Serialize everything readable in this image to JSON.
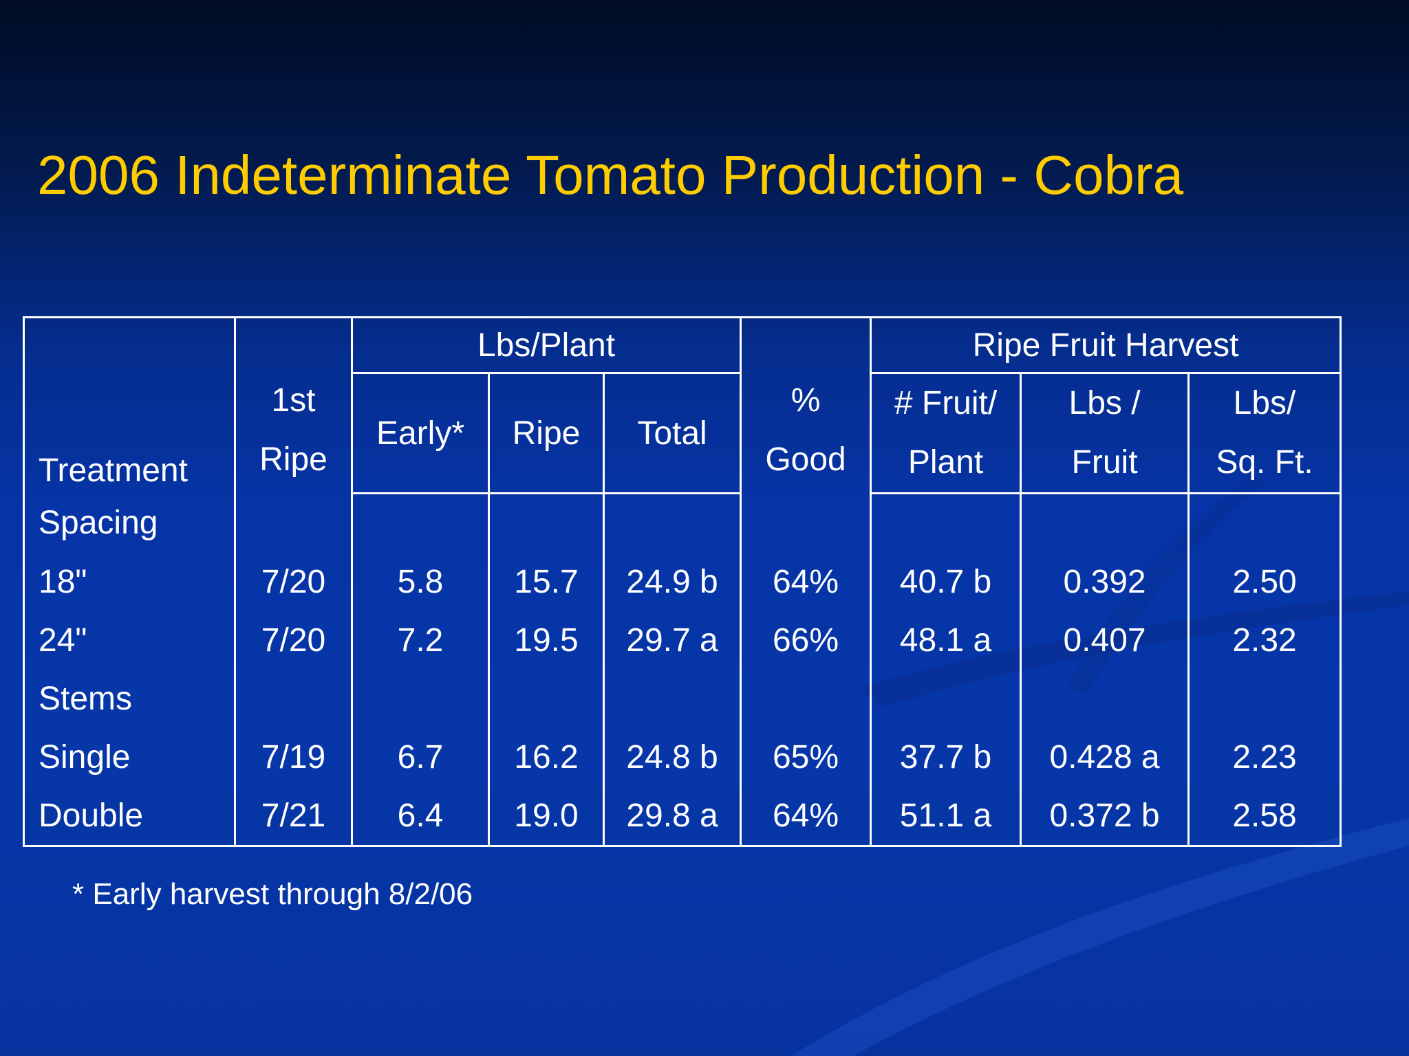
{
  "slide": {
    "title": "2006 Indeterminate Tomato Production - Cobra",
    "footnote": "* Early harvest through 8/2/06"
  },
  "table": {
    "headers": {
      "treatment": "Treatment",
      "first_ripe_line1": "1st",
      "first_ripe_line2": "Ripe",
      "lbs_plant_group": "Lbs/Plant",
      "early": "Early*",
      "ripe": "Ripe",
      "total": "Total",
      "good_line1": "%",
      "good_line2": "Good",
      "ripe_fruit_group": "Ripe Fruit Harvest",
      "fruit_plant_line1": "# Fruit/",
      "fruit_plant_line2": "Plant",
      "lbs_fruit_line1": "Lbs /",
      "lbs_fruit_line2": "Fruit",
      "lbs_sqft_line1": "Lbs/",
      "lbs_sqft_line2": "Sq. Ft."
    },
    "sections": [
      {
        "label": "Spacing",
        "rows": [
          {
            "treatment": "18\"",
            "first_ripe": "7/20",
            "early": "5.8",
            "ripe": "15.7",
            "total": "24.9 b",
            "good": "64%",
            "fruit_plant": "40.7 b",
            "lbs_fruit": "0.392",
            "lbs_sqft": "2.50"
          },
          {
            "treatment": "24\"",
            "first_ripe": "7/20",
            "early": "7.2",
            "ripe": "19.5",
            "total": "29.7 a",
            "good": "66%",
            "fruit_plant": "48.1 a",
            "lbs_fruit": "0.407",
            "lbs_sqft": "2.32"
          }
        ]
      },
      {
        "label": "Stems",
        "rows": [
          {
            "treatment": "Single",
            "first_ripe": "7/19",
            "early": "6.7",
            "ripe": "16.2",
            "total": "24.8 b",
            "good": "65%",
            "fruit_plant": "37.7 b",
            "lbs_fruit": "0.428 a",
            "lbs_sqft": "2.23"
          },
          {
            "treatment": "Double",
            "first_ripe": "7/21",
            "early": "6.4",
            "ripe": "19.0",
            "total": "29.8 a",
            "good": "64%",
            "fruit_plant": "51.1 a",
            "lbs_fruit": "0.372 b",
            "lbs_sqft": "2.58"
          }
        ]
      }
    ]
  }
}
